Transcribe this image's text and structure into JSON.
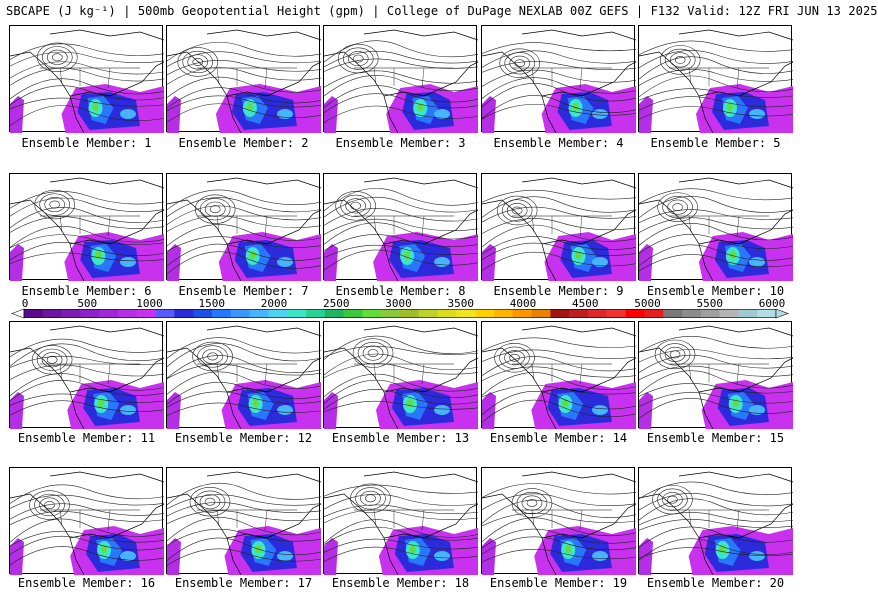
{
  "title": "SBCAPE (J kg⁻¹) | 500mb Geopotential Height (gpm) | College of DuPage NEXLAB 00Z GEFS | F132 Valid: 12Z FRI JUN 13 2025",
  "panels": [
    {
      "label": "Ensemble Member: 1"
    },
    {
      "label": "Ensemble Member: 2"
    },
    {
      "label": "Ensemble Member: 3"
    },
    {
      "label": "Ensemble Member: 4"
    },
    {
      "label": "Ensemble Member: 5"
    },
    {
      "label": "Ensemble Member: 6"
    },
    {
      "label": "Ensemble Member: 7"
    },
    {
      "label": "Ensemble Member: 8"
    },
    {
      "label": "Ensemble Member: 9"
    },
    {
      "label": "Ensemble Member: 10"
    },
    {
      "label": "Ensemble Member: 11"
    },
    {
      "label": "Ensemble Member: 12"
    },
    {
      "label": "Ensemble Member: 13"
    },
    {
      "label": "Ensemble Member: 14"
    },
    {
      "label": "Ensemble Member: 15"
    },
    {
      "label": "Ensemble Member: 16"
    },
    {
      "label": "Ensemble Member: 17"
    },
    {
      "label": "Ensemble Member: 18"
    },
    {
      "label": "Ensemble Member: 19"
    },
    {
      "label": "Ensemble Member: 20"
    }
  ],
  "colorbar": {
    "ticks": [
      "0",
      "500",
      "1000",
      "1500",
      "2000",
      "2500",
      "3000",
      "3500",
      "4000",
      "4500",
      "5000",
      "5500",
      "6000"
    ],
    "colors": [
      "#5a0a8a",
      "#6a14a0",
      "#7c1cb4",
      "#8e22c8",
      "#a028d8",
      "#b42ee6",
      "#c832ee",
      "#5a5aff",
      "#2b2bdc",
      "#1e50e6",
      "#2878ff",
      "#3c96ff",
      "#46b4ff",
      "#50d2f0",
      "#3ce6c8",
      "#28d296",
      "#1eb464",
      "#3cc83c",
      "#64dc3c",
      "#8cc83c",
      "#a0be28",
      "#bed228",
      "#dcdc1e",
      "#f0e61e",
      "#ffd200",
      "#ffb400",
      "#ff9600",
      "#e68200",
      "#a01414",
      "#be1e1e",
      "#dc2828",
      "#f03232",
      "#ff0000",
      "#e61e1e",
      "#787878",
      "#8c8c8c",
      "#a0a0a0",
      "#b4b4b4",
      "#a0c8d2",
      "#b4dce6"
    ]
  }
}
